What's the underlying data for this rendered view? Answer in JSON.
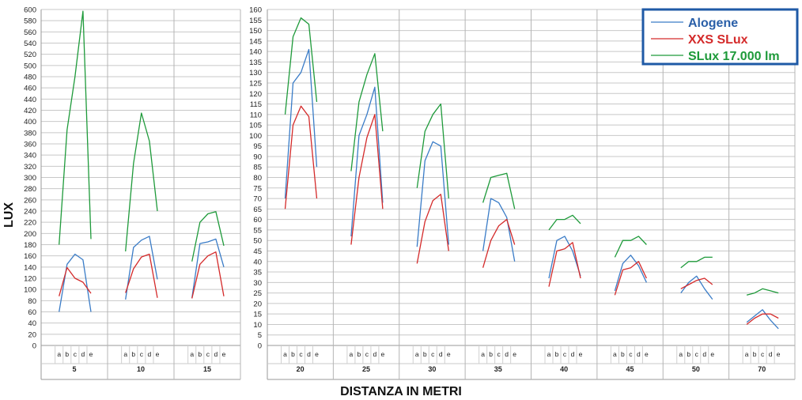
{
  "chart_data": {
    "type": "line",
    "xlabel": "DISTANZA IN METRI",
    "ylabel": "LUX",
    "sub_positions": [
      "a",
      "b",
      "c",
      "d",
      "e"
    ],
    "colors": {
      "Alogene": "#3a7cc7",
      "XXS SLux": "#d42a2a",
      "SLux 17.000 lm": "#1e9a3a",
      "border": "#1f5aa6",
      "grid": "#c8c8c8"
    },
    "legend": [
      {
        "name": "Alogene",
        "color": "#2a5fa8"
      },
      {
        "name": "XXS SLux",
        "color": "#d42a2a"
      },
      {
        "name": "SLux 17.000 lm",
        "color": "#1e9a3a"
      }
    ],
    "panels": [
      {
        "ylim": [
          0,
          600
        ],
        "yticks": [
          0,
          20,
          40,
          60,
          80,
          100,
          120,
          140,
          160,
          180,
          200,
          220,
          240,
          260,
          280,
          300,
          320,
          340,
          360,
          380,
          400,
          420,
          440,
          460,
          480,
          500,
          520,
          540,
          560,
          580,
          600
        ],
        "groups": [
          {
            "distance": "5",
            "series": {
              "Alogene": [
                60,
                145,
                163,
                153,
                60
              ],
              "XXS SLux": [
                88,
                139,
                120,
                113,
                93
              ],
              "SLux 17.000 lm": [
                180,
                385,
                480,
                597,
                190
              ]
            }
          },
          {
            "distance": "10",
            "series": {
              "Alogene": [
                82,
                175,
                188,
                195,
                118
              ],
              "XXS SLux": [
                94,
                137,
                158,
                163,
                85
              ],
              "SLux 17.000 lm": [
                168,
                325,
                415,
                365,
                240
              ]
            }
          },
          {
            "distance": "15",
            "series": {
              "Alogene": [
                85,
                182,
                185,
                190,
                140
              ],
              "XXS SLux": [
                84,
                145,
                160,
                167,
                88
              ],
              "SLux 17.000 lm": [
                150,
                220,
                235,
                239,
                178
              ]
            }
          }
        ]
      },
      {
        "ylim": [
          0,
          160
        ],
        "yticks": [
          0,
          5,
          10,
          15,
          20,
          25,
          30,
          35,
          40,
          45,
          50,
          55,
          60,
          65,
          70,
          75,
          80,
          85,
          90,
          95,
          100,
          105,
          110,
          115,
          120,
          125,
          130,
          135,
          140,
          145,
          150,
          155,
          160
        ],
        "groups": [
          {
            "distance": "20",
            "series": {
              "Alogene": [
                70,
                125,
                130,
                141,
                85
              ],
              "XXS SLux": [
                65,
                105,
                114,
                109,
                70
              ],
              "SLux 17.000 lm": [
                110,
                147,
                156,
                153,
                116
              ]
            }
          },
          {
            "distance": "25",
            "series": {
              "Alogene": [
                52,
                100,
                110,
                123,
                68
              ],
              "XXS SLux": [
                48,
                80,
                99,
                110,
                65
              ],
              "SLux 17.000 lm": [
                83,
                116,
                129,
                139,
                102
              ]
            }
          },
          {
            "distance": "30",
            "series": {
              "Alogene": [
                47,
                88,
                97,
                95,
                48
              ],
              "XXS SLux": [
                39,
                59,
                69,
                72,
                45
              ],
              "SLux 17.000 lm": [
                75,
                102,
                110,
                115,
                70
              ]
            }
          },
          {
            "distance": "35",
            "series": {
              "Alogene": [
                45,
                70,
                68,
                61,
                40
              ],
              "XXS SLux": [
                37,
                50,
                57,
                60,
                48
              ],
              "SLux 17.000 lm": [
                68,
                80,
                81,
                82,
                65
              ]
            }
          },
          {
            "distance": "40",
            "series": {
              "Alogene": [
                32,
                50,
                52,
                45,
                33
              ],
              "XXS SLux": [
                28,
                45,
                46,
                49,
                32
              ],
              "SLux 17.000 lm": [
                55,
                60,
                60,
                62,
                58
              ]
            }
          },
          {
            "distance": "45",
            "series": {
              "Alogene": [
                26,
                39,
                43,
                38,
                30
              ],
              "XXS SLux": [
                24,
                36,
                37,
                40,
                32
              ],
              "SLux 17.000 lm": [
                42,
                50,
                50,
                52,
                48
              ]
            }
          },
          {
            "distance": "50",
            "series": {
              "Alogene": [
                25,
                30,
                33,
                27,
                22
              ],
              "XXS SLux": [
                27,
                29,
                31,
                32,
                29
              ],
              "SLux 17.000 lm": [
                37,
                40,
                40,
                42,
                42
              ]
            }
          },
          {
            "distance": "70",
            "series": {
              "Alogene": [
                11,
                14,
                17,
                12,
                8
              ],
              "XXS SLux": [
                10,
                13,
                15,
                15,
                13
              ],
              "SLux 17.000 lm": [
                24,
                25,
                27,
                26,
                25
              ]
            }
          }
        ]
      }
    ]
  }
}
